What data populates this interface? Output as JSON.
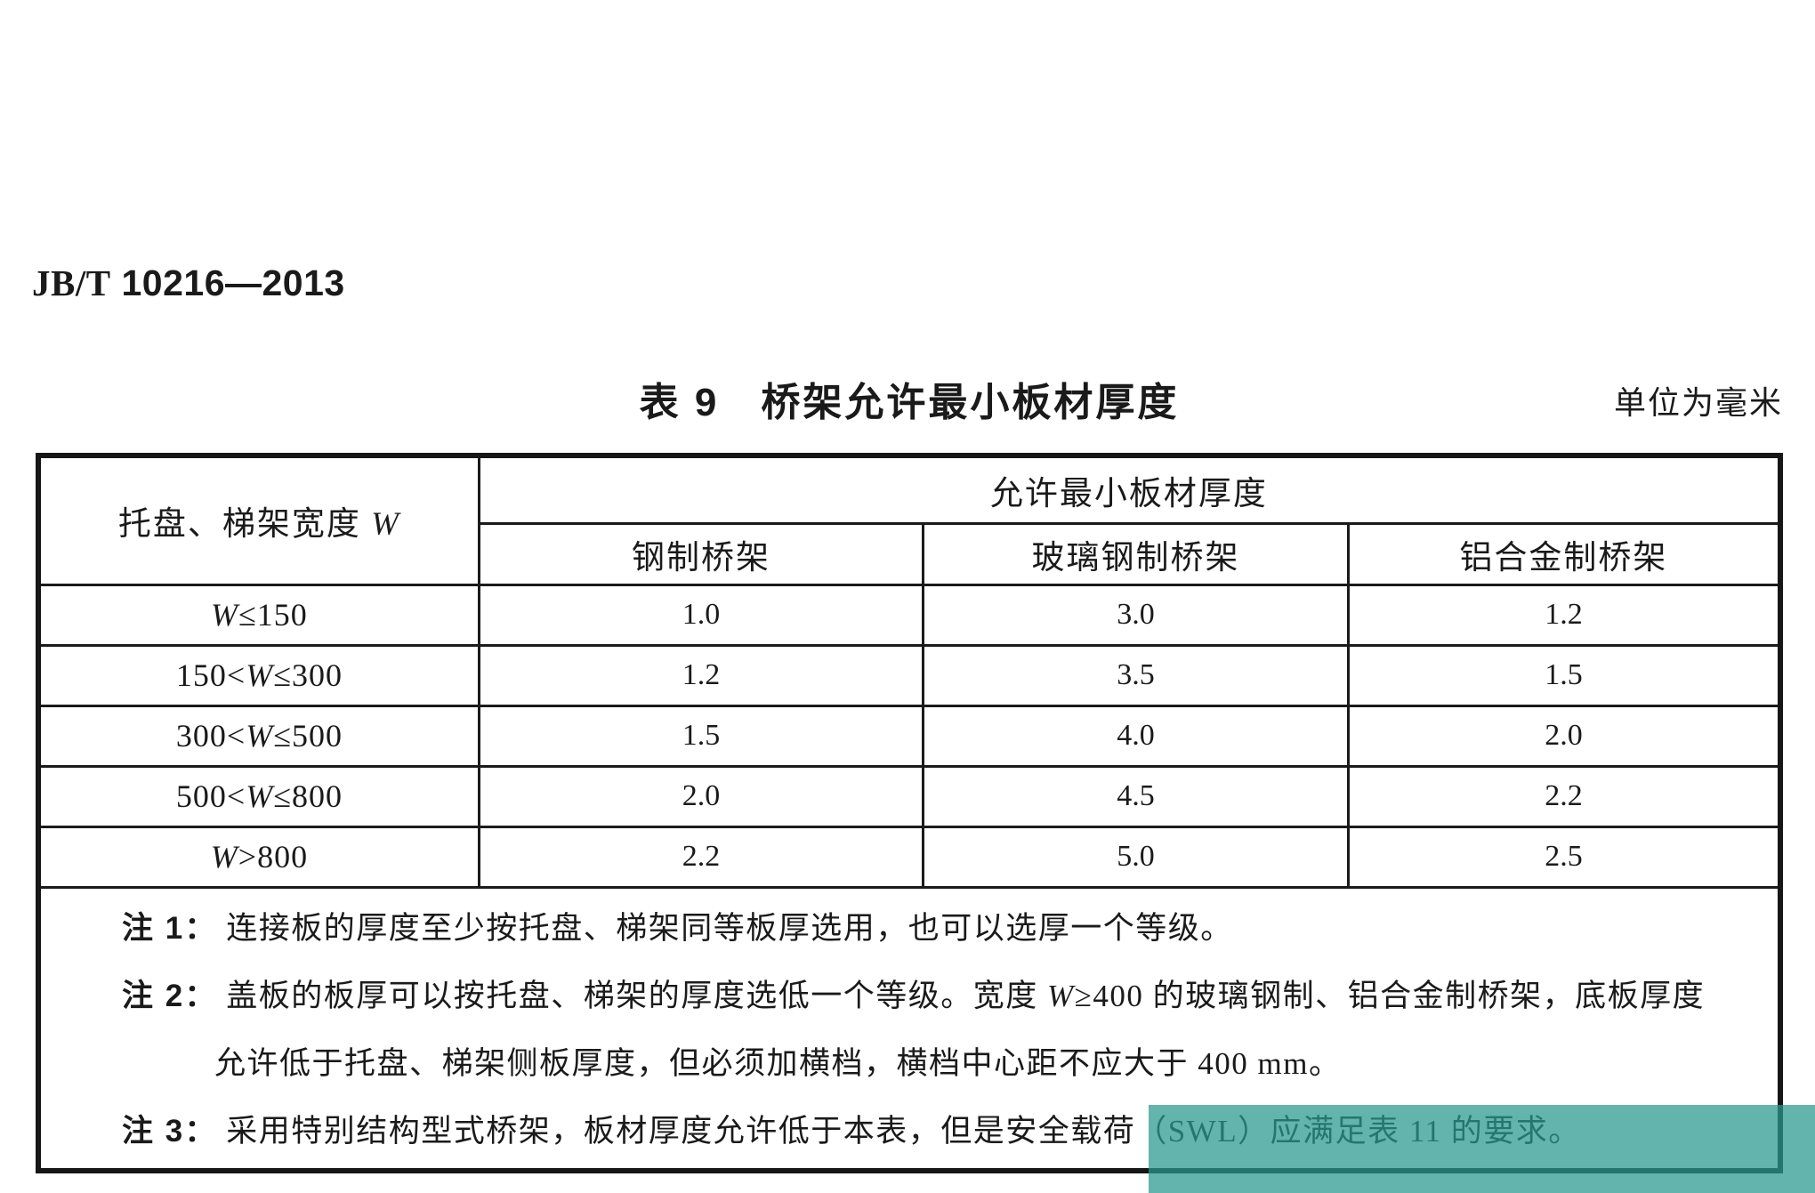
{
  "page": {
    "doc_number_prefix": "JB/T",
    "doc_number_rest": " 10216—2013",
    "caption": "表 9　桥架允许最小板材厚度",
    "unit_label": "单位为毫米",
    "highlight_color": "#2a988d"
  },
  "table": {
    "w_symbol": "W",
    "row_header_pre": "托盘、梯架宽度 ",
    "span_header": "允许最小板材厚度",
    "col_headers": {
      "steel": "钢制桥架",
      "frp": "玻璃钢制桥架",
      "aluminum": "铝合金制桥架"
    },
    "rows": [
      {
        "range_pre": "",
        "range_post": "≤150",
        "steel": "1.0",
        "frp": "3.0",
        "aluminum": "1.2"
      },
      {
        "range_pre": "150<",
        "range_post": "≤300",
        "steel": "1.2",
        "frp": "3.5",
        "aluminum": "1.5"
      },
      {
        "range_pre": "300<",
        "range_post": "≤500",
        "steel": "1.5",
        "frp": "4.0",
        "aluminum": "2.0"
      },
      {
        "range_pre": "500<",
        "range_post": "≤800",
        "steel": "2.0",
        "frp": "4.5",
        "aluminum": "2.2"
      },
      {
        "range_pre": "",
        "range_post": ">800",
        "steel": "2.2",
        "frp": "5.0",
        "aluminum": "2.5"
      }
    ],
    "notes": {
      "n1_label": "注 1：",
      "n1_text": "连接板的厚度至少按托盘、梯架同等板厚选用，也可以选厚一个等级。",
      "n2_label": "注 2：",
      "n2_text_a": "盖板的板厚可以按托盘、梯架的厚度选低一个等级。宽度 ",
      "n2_text_b": "≥400 的玻璃钢制、铝合金制桥架，底板厚度",
      "n2_line2": "允许低于托盘、梯架侧板厚度，但必须加横档，横档中心距不应大于 400 mm。",
      "n3_label": "注 3：",
      "n3_text": "采用特别结构型式桥架，板材厚度允许低于本表，但是安全载荷（SWL）应满足表 11 的要求。"
    }
  }
}
